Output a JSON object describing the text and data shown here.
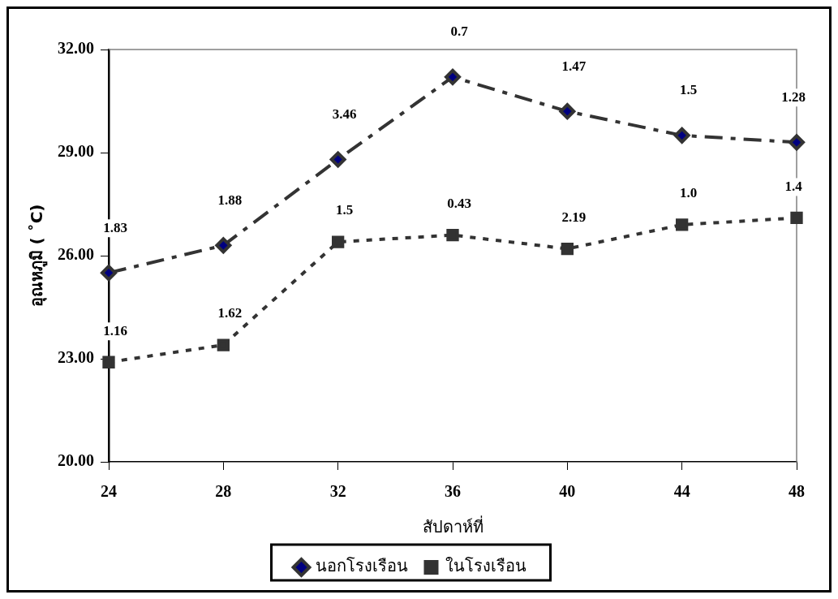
{
  "chart_data": {
    "type": "line",
    "xlabel": "สัปดาห์ที่",
    "ylabel": "อุณหภูมิ ( ˚C)",
    "categories": [
      "24",
      "28",
      "32",
      "36",
      "40",
      "44",
      "48"
    ],
    "series": [
      {
        "name": "นอกโรงเรือน",
        "color": "#000080",
        "marker": "diamond",
        "line_style": "dashed",
        "values": [
          25.5,
          26.3,
          28.8,
          31.2,
          30.2,
          29.5,
          29.3
        ]
      },
      {
        "name": "ในโรงเรือน",
        "color": "#333333",
        "marker": "square",
        "line_style": "dotted",
        "values": [
          22.9,
          23.4,
          26.4,
          26.6,
          26.2,
          26.9,
          27.1
        ]
      }
    ],
    "ylim": [
      20,
      32
    ],
    "yticks": [
      {
        "value": 20,
        "label": "20.00"
      },
      {
        "value": 23,
        "label": "23.00"
      },
      {
        "value": 26,
        "label": "26.00"
      },
      {
        "value": 29,
        "label": "29.00"
      },
      {
        "value": 32,
        "label": "32.00"
      }
    ],
    "grid": false,
    "legend": "bottom",
    "annotations": [
      "1.83",
      "1.88",
      "3.46",
      "0.7",
      "1.47",
      "1.5",
      "1.28",
      "1.16",
      "1.62",
      "1.5",
      "0.43",
      "2.19",
      "1.0",
      "1.4"
    ]
  }
}
